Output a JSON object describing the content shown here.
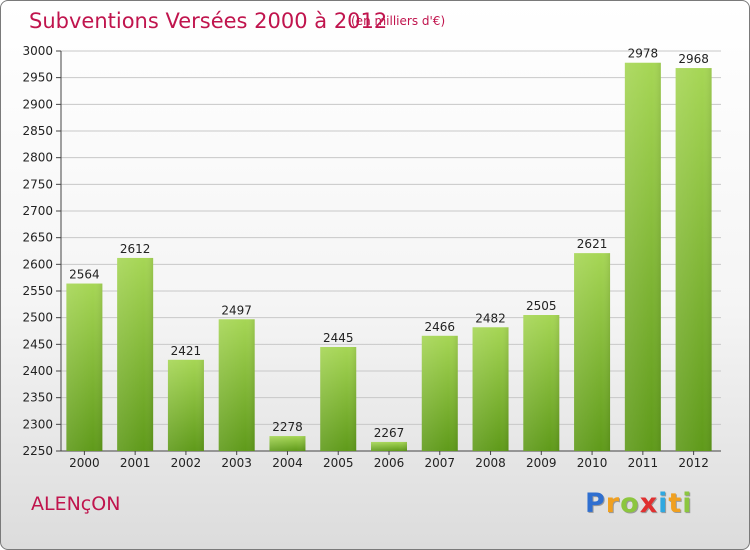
{
  "header": {
    "title": "Subventions Versées 2000 à 2012",
    "subtitle": "(en milliers d'€)"
  },
  "footer": {
    "city": "ALENçON",
    "logo": {
      "letters": [
        "P",
        "r",
        "o",
        "x",
        "i",
        "t",
        "i"
      ],
      "colors": [
        "#2f6fd0",
        "#f0a020",
        "#8cc63f",
        "#e03030",
        "#2fa8e0",
        "#f0a020",
        "#8cc63f"
      ]
    }
  },
  "colors": {
    "title": "#c0144d",
    "bar_top": "#a6d655",
    "bar_bottom": "#5f9a1a",
    "grid": "#c8c8c8"
  },
  "chart_data": {
    "type": "bar",
    "title": "Subventions Versées 2000 à 2012",
    "subtitle": "(en milliers d'€)",
    "xlabel": "",
    "ylabel": "",
    "categories": [
      "2000",
      "2001",
      "2002",
      "2003",
      "2004",
      "2005",
      "2006",
      "2007",
      "2008",
      "2009",
      "2010",
      "2011",
      "2012"
    ],
    "values": [
      2564,
      2612,
      2421,
      2497,
      2278,
      2445,
      2267,
      2466,
      2482,
      2505,
      2621,
      2978,
      2968
    ],
    "ylim": [
      2250,
      3000
    ],
    "yticks": [
      2250,
      2300,
      2350,
      2400,
      2450,
      2500,
      2550,
      2600,
      2650,
      2700,
      2750,
      2800,
      2850,
      2900,
      2950,
      3000
    ],
    "grid": true,
    "legend": "none"
  }
}
